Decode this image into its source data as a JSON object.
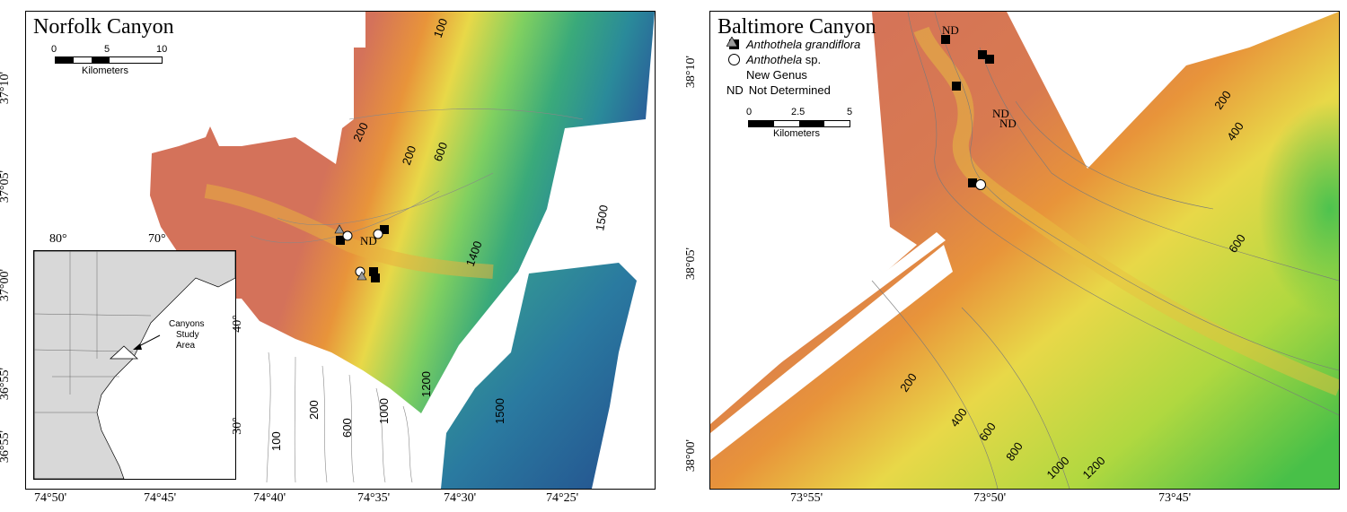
{
  "left_map": {
    "title": "Norfolk Canyon",
    "scale": {
      "ticks": [
        "0",
        "5",
        "10"
      ],
      "unit": "Kilometers"
    },
    "lat_ticks": [
      "37°10'",
      "37°05'",
      "37°00'",
      "36°55'"
    ],
    "lon_ticks": [
      "74°50'",
      "74°45'",
      "74°40'",
      "74°35'",
      "74°30'",
      "74°25'"
    ],
    "contours": [
      "100",
      "200",
      "200",
      "600",
      "1400",
      "1500",
      "200",
      "600",
      "1000",
      "1200",
      "1500",
      "100"
    ],
    "nd_label": "ND",
    "inset": {
      "lon_ticks": [
        "80°",
        "70°"
      ],
      "lat_ticks": [
        "40°",
        "30°"
      ],
      "annotation_line1": "Canyons",
      "annotation_line2": "Study",
      "annotation_line3": "Area"
    }
  },
  "right_map": {
    "title": "Baltimore Canyon",
    "legend": {
      "grandiflora_genus": "Anthothela",
      "grandiflora_species": "grandiflora",
      "sp_genus": "Anthothela",
      "sp_suffix": "sp.",
      "new_genus": "New Genus",
      "nd_symbol": "ND",
      "nd_text": "Not Determined"
    },
    "scale": {
      "ticks": [
        "0",
        "2.5",
        "5"
      ],
      "unit": "Kilometers"
    },
    "lat_ticks": [
      "38°10'",
      "38°05'",
      "38°00'"
    ],
    "lon_ticks": [
      "73°55'",
      "73°50'",
      "73°45'"
    ],
    "contours": [
      "200",
      "400",
      "600",
      "200",
      "400",
      "600",
      "800",
      "1000",
      "1200"
    ],
    "nd_labels": [
      "ND",
      "ND",
      "ND"
    ]
  },
  "colors": {
    "shelf": "#d4725a",
    "orange": "#e8943a",
    "yellow": "#e8d848",
    "green": "#58c858",
    "teal": "#2a9a9a",
    "blue": "#2a5a9a"
  }
}
